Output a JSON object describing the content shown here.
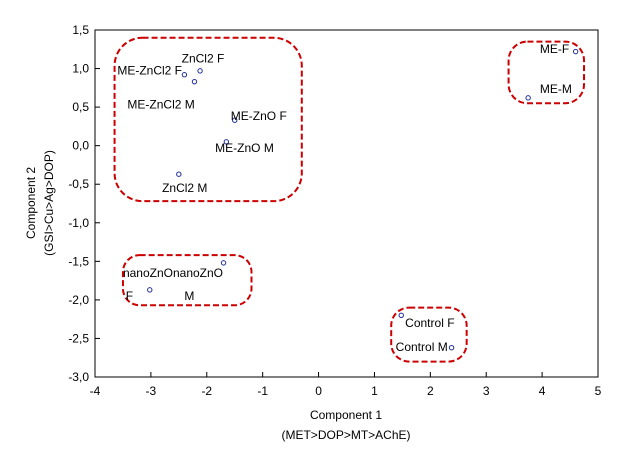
{
  "chart_data": {
    "type": "scatter",
    "xlabel": "Component 1",
    "xlabel_sub": "(MET>DOP>MT>AChE)",
    "ylabel": "Component 2",
    "ylabel_sub": "(GSI>Cu>Ag>DOP)",
    "xlim": [
      -4,
      5
    ],
    "ylim": [
      -3.0,
      1.5
    ],
    "x_ticks": [
      -4,
      -3,
      -2,
      -1,
      0,
      1,
      2,
      3,
      4,
      5
    ],
    "x_tick_labels": [
      "-4",
      "-3",
      "-2",
      "-1",
      "0",
      "1",
      "2",
      "3",
      "4",
      "5"
    ],
    "y_ticks": [
      1.5,
      1.0,
      0.5,
      0.0,
      -0.5,
      -1.0,
      -1.5,
      -2.0,
      -2.5,
      -3.0
    ],
    "y_tick_labels": [
      "1,5",
      "1,0",
      "0,5",
      "0,0",
      "-0,5",
      "-1,0",
      "-1,5",
      "-2,0",
      "-2,5",
      "-3,0"
    ],
    "grid": false,
    "point_color": "#1f2e9c",
    "group_color": "#cc0000",
    "points": [
      {
        "x": -2.12,
        "y": 0.97
      },
      {
        "x": -2.22,
        "y": 0.83
      },
      {
        "x": -2.4,
        "y": 0.92
      },
      {
        "x": -1.5,
        "y": 0.33
      },
      {
        "x": -1.65,
        "y": 0.05
      },
      {
        "x": -2.5,
        "y": -0.37
      },
      {
        "x": -1.7,
        "y": -1.52
      },
      {
        "x": -3.02,
        "y": -1.87
      },
      {
        "x": 1.48,
        "y": -2.2
      },
      {
        "x": 2.38,
        "y": -2.62
      },
      {
        "x": 4.6,
        "y": 1.22
      },
      {
        "x": 3.75,
        "y": 0.62
      }
    ],
    "labels": [
      {
        "text": "ZnCl2 F",
        "x": -2.45,
        "y": 1.08
      },
      {
        "text": "ME-ZnCl2 F",
        "x": -3.6,
        "y": 0.92
      },
      {
        "text": "ME-ZnCl2 M",
        "x": -3.42,
        "y": 0.48
      },
      {
        "text": "ME-ZnO F",
        "x": -1.57,
        "y": 0.33
      },
      {
        "text": "ME-ZnO M",
        "x": -1.85,
        "y": -0.08
      },
      {
        "text": "ZnCl2 M",
        "x": -2.8,
        "y": -0.6
      },
      {
        "text": "nanoZnOnanoZnO",
        "x": -3.5,
        "y": -1.7
      },
      {
        "text": "F",
        "x": -3.45,
        "y": -2.0
      },
      {
        "text": "M",
        "x": -2.4,
        "y": -2.0
      },
      {
        "text": "Control F",
        "x": 1.55,
        "y": -2.35
      },
      {
        "text": "Control M",
        "x": 1.38,
        "y": -2.66
      },
      {
        "text": "ME-F",
        "x": 3.96,
        "y": 1.2
      },
      {
        "text": "ME-M",
        "x": 3.96,
        "y": 0.68
      }
    ],
    "groups": [
      {
        "x1": -3.65,
        "y1": 1.4,
        "x2": -0.3,
        "y2": -0.72
      },
      {
        "x1": -3.5,
        "y1": -1.42,
        "x2": -1.2,
        "y2": -2.07
      },
      {
        "x1": 1.3,
        "y1": -2.1,
        "x2": 2.65,
        "y2": -2.8
      },
      {
        "x1": 3.4,
        "y1": 1.35,
        "x2": 4.75,
        "y2": 0.55
      }
    ]
  }
}
